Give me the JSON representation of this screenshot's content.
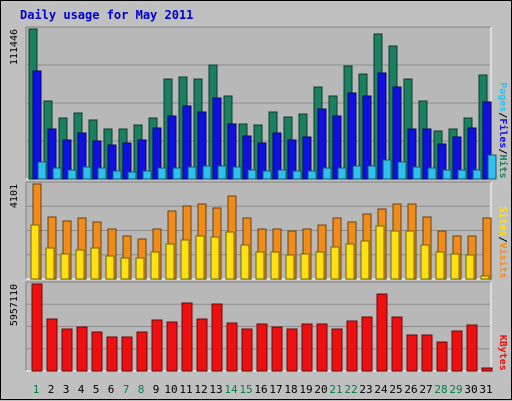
{
  "title": "Daily usage for May 2011",
  "colors": {
    "background": "#c0c0c0",
    "panel": "#b8b8b8",
    "hits": "#1a8060",
    "files": "#1010e0",
    "pages": "#30c0f0",
    "visits": "#f08c1c",
    "sites": "#ffe010",
    "kbytes": "#ee1010",
    "weekend_day_label": "#008040",
    "weekday_label": "#000000"
  },
  "chart_data": [
    {
      "type": "bar",
      "panel": "hits-files-pages",
      "categories": [
        "1",
        "2",
        "3",
        "4",
        "5",
        "6",
        "7",
        "8",
        "9",
        "10",
        "11",
        "12",
        "13",
        "14",
        "15",
        "16",
        "17",
        "18",
        "19",
        "20",
        "21",
        "22",
        "23",
        "24",
        "25",
        "26",
        "27",
        "28",
        "29",
        "30",
        "31"
      ],
      "y_tick_label": "111446",
      "ylim": [
        0,
        111446
      ],
      "legend": [
        "Pages",
        "/",
        "Files",
        "/",
        "Hits"
      ],
      "legend_position": "right",
      "series": [
        {
          "name": "Hits",
          "values": [
            111446,
            58000,
            45000,
            49000,
            44000,
            37000,
            37000,
            40000,
            45000,
            74000,
            76000,
            74000,
            85000,
            62000,
            41000,
            40000,
            50000,
            46000,
            48000,
            68000,
            62000,
            84000,
            78000,
            108000,
            99000,
            74000,
            58000,
            36000,
            37000,
            45000,
            77000
          ]
        },
        {
          "name": "Files",
          "values": [
            80000,
            37000,
            29000,
            34000,
            28000,
            25000,
            27000,
            29000,
            38000,
            47000,
            54000,
            50000,
            60000,
            41000,
            32000,
            27000,
            34000,
            29000,
            31000,
            52000,
            47000,
            64000,
            62000,
            79000,
            68000,
            37000,
            37000,
            26000,
            31000,
            38000,
            57000
          ]
        },
        {
          "name": "Pages",
          "values": [
            13000,
            8000,
            7000,
            9000,
            8000,
            6000,
            5000,
            6000,
            8000,
            8000,
            9000,
            10000,
            10000,
            9000,
            7000,
            6000,
            7000,
            6000,
            6000,
            8000,
            8000,
            10000,
            10000,
            14000,
            13000,
            9000,
            8000,
            7000,
            7000,
            7000,
            18000
          ]
        }
      ]
    },
    {
      "type": "bar",
      "panel": "visits-sites",
      "categories": [
        "1",
        "2",
        "3",
        "4",
        "5",
        "6",
        "7",
        "8",
        "9",
        "10",
        "11",
        "12",
        "13",
        "14",
        "15",
        "16",
        "17",
        "18",
        "19",
        "20",
        "21",
        "22",
        "23",
        "24",
        "25",
        "26",
        "27",
        "28",
        "29",
        "30",
        "31"
      ],
      "y_tick_label": "4101",
      "ylim": [
        0,
        4101
      ],
      "legend": [
        "Sites",
        "/",
        "Visits"
      ],
      "legend_position": "right",
      "series": [
        {
          "name": "Visits",
          "values": [
            4101,
            2660,
            2520,
            2620,
            2480,
            2140,
            1870,
            1720,
            2140,
            2930,
            3130,
            3240,
            3080,
            3600,
            2620,
            2140,
            2140,
            2070,
            2140,
            2310,
            2620,
            2480,
            2790,
            3040,
            3250,
            3250,
            2690,
            2070,
            1870,
            1870,
            2620
          ]
        },
        {
          "name": "Sites",
          "values": [
            2350,
            1330,
            1060,
            1240,
            1330,
            990,
            920,
            890,
            1160,
            1530,
            1700,
            1840,
            1800,
            2050,
            1460,
            1180,
            1180,
            1020,
            1090,
            1180,
            1360,
            1500,
            1660,
            2290,
            2070,
            2070,
            1460,
            1160,
            1070,
            1040,
            110
          ]
        }
      ]
    },
    {
      "type": "bar",
      "panel": "kbytes",
      "categories": [
        "1",
        "2",
        "3",
        "4",
        "5",
        "6",
        "7",
        "8",
        "9",
        "10",
        "11",
        "12",
        "13",
        "14",
        "15",
        "16",
        "17",
        "18",
        "19",
        "20",
        "21",
        "22",
        "23",
        "24",
        "25",
        "26",
        "27",
        "28",
        "29",
        "30",
        "31"
      ],
      "y_tick_label": "5957110",
      "ylim": [
        0,
        5957110
      ],
      "legend": [
        "KBytes"
      ],
      "legend_position": "right",
      "series": [
        {
          "name": "KBytes",
          "values": [
            5957110,
            3590000,
            2900000,
            3000000,
            2650000,
            2330000,
            2330000,
            2650000,
            3510000,
            3370000,
            4660000,
            3590000,
            4590000,
            3280000,
            2900000,
            3190000,
            3020000,
            2890000,
            3190000,
            3190000,
            2860000,
            3440000,
            3670000,
            5260000,
            3700000,
            2440000,
            2440000,
            2000000,
            2720000,
            3120000,
            200000
          ]
        }
      ]
    }
  ]
}
